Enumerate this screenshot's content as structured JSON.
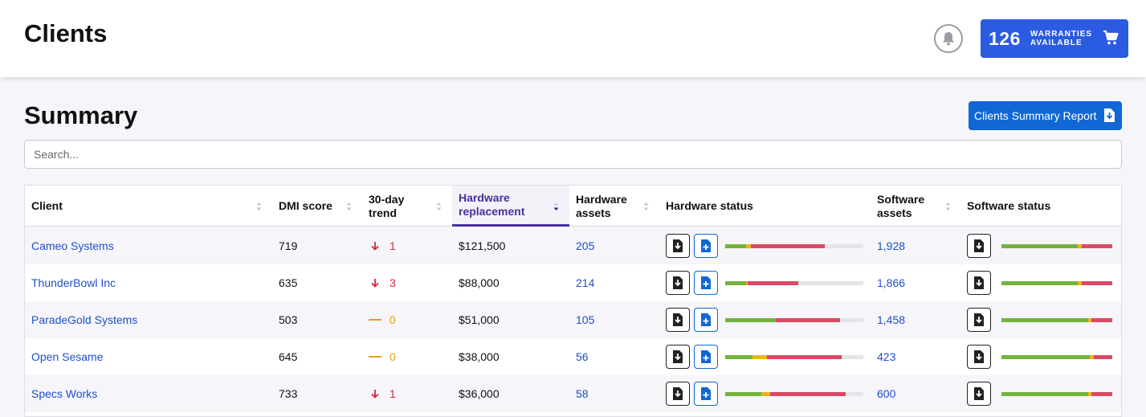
{
  "header": {
    "title": "Clients",
    "warranties_count": "126",
    "warranties_line1": "WARRANTIES",
    "warranties_line2": "AVAILABLE"
  },
  "summary": {
    "title": "Summary",
    "report_button": "Clients Summary Report"
  },
  "search": {
    "placeholder": "Search...",
    "value": ""
  },
  "table": {
    "columns": [
      {
        "label": "Client"
      },
      {
        "label": "DMI score"
      },
      {
        "label": "30-day trend"
      },
      {
        "label": "Hardware replacement",
        "active": true
      },
      {
        "label": "Hardware assets"
      },
      {
        "label": "Hardware status"
      },
      {
        "label": "Software assets"
      },
      {
        "label": "Software status"
      }
    ],
    "rows": [
      {
        "client": "Cameo Systems",
        "dmi": "719",
        "trend_dir": "down",
        "trend": "1",
        "replacement": "$121,500",
        "hw_assets": "205",
        "sw_assets": "1,928",
        "hw_status": {
          "green": 0.15,
          "yellow": 0.035,
          "red": 0.535
        },
        "sw_status": {
          "green": 0.69,
          "yellow": 0.035,
          "red": 0.275
        }
      },
      {
        "client": "ThunderBowl Inc",
        "dmi": "635",
        "trend_dir": "down",
        "trend": "3",
        "replacement": "$88,000",
        "hw_assets": "214",
        "sw_assets": "1,866",
        "hw_status": {
          "green": 0.15,
          "yellow": 0.015,
          "red": 0.365
        },
        "sw_status": {
          "green": 0.69,
          "yellow": 0.035,
          "red": 0.275
        }
      },
      {
        "client": "ParadeGold Systems",
        "dmi": "503",
        "trend_dir": "flat",
        "trend": "0",
        "replacement": "$51,000",
        "hw_assets": "105",
        "sw_assets": "1,458",
        "hw_status": {
          "green": 0.365,
          "yellow": 0.0,
          "red": 0.465
        },
        "sw_status": {
          "green": 0.78,
          "yellow": 0.035,
          "red": 0.185
        }
      },
      {
        "client": "Open Sesame",
        "dmi": "645",
        "trend_dir": "flat",
        "trend": "0",
        "replacement": "$38,000",
        "hw_assets": "56",
        "sw_assets": "423",
        "hw_status": {
          "green": 0.2,
          "yellow": 0.1,
          "red": 0.545
        },
        "sw_status": {
          "green": 0.8,
          "yellow": 0.035,
          "red": 0.165
        }
      },
      {
        "client": "Specs Works",
        "dmi": "733",
        "trend_dir": "down",
        "trend": "1",
        "replacement": "$36,000",
        "hw_assets": "58",
        "sw_assets": "600",
        "hw_status": {
          "green": 0.26,
          "yellow": 0.065,
          "red": 0.55
        },
        "sw_status": {
          "green": 0.78,
          "yellow": 0.035,
          "red": 0.185
        }
      }
    ]
  },
  "colors": {
    "accent": "#2b5be0",
    "link": "#1e4fc8",
    "active_sort": "#4a2f9e",
    "status_green": "#74b33b",
    "status_yellow": "#efb31a",
    "status_red": "#d94a64",
    "trend_down": "#d8263b",
    "trend_flat": "#e8a016"
  },
  "icons": {
    "bell": "bell-icon",
    "cart": "cart-icon",
    "report": "file-download-icon",
    "download": "download-icon",
    "add": "add-file-icon",
    "trend_down": "arrow-down-icon",
    "trend_flat": "dash-icon",
    "sort": "sort-icon"
  }
}
